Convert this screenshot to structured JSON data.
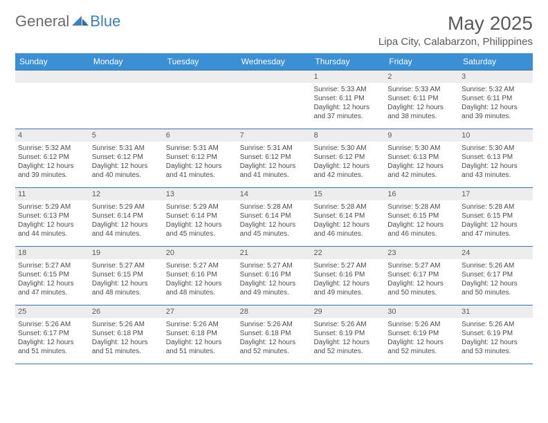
{
  "logo": {
    "text1": "General",
    "text2": "Blue"
  },
  "title": "May 2025",
  "location": "Lipa City, Calabarzon, Philippines",
  "colors": {
    "header_bg": "#3b8fd4",
    "header_text": "#ffffff",
    "border": "#3b6fa8",
    "daynum_bg": "#ededed",
    "text": "#4a4a4a",
    "logo_gray": "#6a6a6a",
    "logo_blue": "#3b7fc4"
  },
  "day_names": [
    "Sunday",
    "Monday",
    "Tuesday",
    "Wednesday",
    "Thursday",
    "Friday",
    "Saturday"
  ],
  "weeks": [
    [
      {
        "day": "",
        "lines": []
      },
      {
        "day": "",
        "lines": []
      },
      {
        "day": "",
        "lines": []
      },
      {
        "day": "",
        "lines": []
      },
      {
        "day": "1",
        "lines": [
          "Sunrise: 5:33 AM",
          "Sunset: 6:11 PM",
          "Daylight: 12 hours and 37 minutes."
        ]
      },
      {
        "day": "2",
        "lines": [
          "Sunrise: 5:33 AM",
          "Sunset: 6:11 PM",
          "Daylight: 12 hours and 38 minutes."
        ]
      },
      {
        "day": "3",
        "lines": [
          "Sunrise: 5:32 AM",
          "Sunset: 6:11 PM",
          "Daylight: 12 hours and 39 minutes."
        ]
      }
    ],
    [
      {
        "day": "4",
        "lines": [
          "Sunrise: 5:32 AM",
          "Sunset: 6:12 PM",
          "Daylight: 12 hours and 39 minutes."
        ]
      },
      {
        "day": "5",
        "lines": [
          "Sunrise: 5:31 AM",
          "Sunset: 6:12 PM",
          "Daylight: 12 hours and 40 minutes."
        ]
      },
      {
        "day": "6",
        "lines": [
          "Sunrise: 5:31 AM",
          "Sunset: 6:12 PM",
          "Daylight: 12 hours and 41 minutes."
        ]
      },
      {
        "day": "7",
        "lines": [
          "Sunrise: 5:31 AM",
          "Sunset: 6:12 PM",
          "Daylight: 12 hours and 41 minutes."
        ]
      },
      {
        "day": "8",
        "lines": [
          "Sunrise: 5:30 AM",
          "Sunset: 6:12 PM",
          "Daylight: 12 hours and 42 minutes."
        ]
      },
      {
        "day": "9",
        "lines": [
          "Sunrise: 5:30 AM",
          "Sunset: 6:13 PM",
          "Daylight: 12 hours and 42 minutes."
        ]
      },
      {
        "day": "10",
        "lines": [
          "Sunrise: 5:30 AM",
          "Sunset: 6:13 PM",
          "Daylight: 12 hours and 43 minutes."
        ]
      }
    ],
    [
      {
        "day": "11",
        "lines": [
          "Sunrise: 5:29 AM",
          "Sunset: 6:13 PM",
          "Daylight: 12 hours and 44 minutes."
        ]
      },
      {
        "day": "12",
        "lines": [
          "Sunrise: 5:29 AM",
          "Sunset: 6:14 PM",
          "Daylight: 12 hours and 44 minutes."
        ]
      },
      {
        "day": "13",
        "lines": [
          "Sunrise: 5:29 AM",
          "Sunset: 6:14 PM",
          "Daylight: 12 hours and 45 minutes."
        ]
      },
      {
        "day": "14",
        "lines": [
          "Sunrise: 5:28 AM",
          "Sunset: 6:14 PM",
          "Daylight: 12 hours and 45 minutes."
        ]
      },
      {
        "day": "15",
        "lines": [
          "Sunrise: 5:28 AM",
          "Sunset: 6:14 PM",
          "Daylight: 12 hours and 46 minutes."
        ]
      },
      {
        "day": "16",
        "lines": [
          "Sunrise: 5:28 AM",
          "Sunset: 6:15 PM",
          "Daylight: 12 hours and 46 minutes."
        ]
      },
      {
        "day": "17",
        "lines": [
          "Sunrise: 5:28 AM",
          "Sunset: 6:15 PM",
          "Daylight: 12 hours and 47 minutes."
        ]
      }
    ],
    [
      {
        "day": "18",
        "lines": [
          "Sunrise: 5:27 AM",
          "Sunset: 6:15 PM",
          "Daylight: 12 hours and 47 minutes."
        ]
      },
      {
        "day": "19",
        "lines": [
          "Sunrise: 5:27 AM",
          "Sunset: 6:15 PM",
          "Daylight: 12 hours and 48 minutes."
        ]
      },
      {
        "day": "20",
        "lines": [
          "Sunrise: 5:27 AM",
          "Sunset: 6:16 PM",
          "Daylight: 12 hours and 48 minutes."
        ]
      },
      {
        "day": "21",
        "lines": [
          "Sunrise: 5:27 AM",
          "Sunset: 6:16 PM",
          "Daylight: 12 hours and 49 minutes."
        ]
      },
      {
        "day": "22",
        "lines": [
          "Sunrise: 5:27 AM",
          "Sunset: 6:16 PM",
          "Daylight: 12 hours and 49 minutes."
        ]
      },
      {
        "day": "23",
        "lines": [
          "Sunrise: 5:27 AM",
          "Sunset: 6:17 PM",
          "Daylight: 12 hours and 50 minutes."
        ]
      },
      {
        "day": "24",
        "lines": [
          "Sunrise: 5:26 AM",
          "Sunset: 6:17 PM",
          "Daylight: 12 hours and 50 minutes."
        ]
      }
    ],
    [
      {
        "day": "25",
        "lines": [
          "Sunrise: 5:26 AM",
          "Sunset: 6:17 PM",
          "Daylight: 12 hours and 51 minutes."
        ]
      },
      {
        "day": "26",
        "lines": [
          "Sunrise: 5:26 AM",
          "Sunset: 6:18 PM",
          "Daylight: 12 hours and 51 minutes."
        ]
      },
      {
        "day": "27",
        "lines": [
          "Sunrise: 5:26 AM",
          "Sunset: 6:18 PM",
          "Daylight: 12 hours and 51 minutes."
        ]
      },
      {
        "day": "28",
        "lines": [
          "Sunrise: 5:26 AM",
          "Sunset: 6:18 PM",
          "Daylight: 12 hours and 52 minutes."
        ]
      },
      {
        "day": "29",
        "lines": [
          "Sunrise: 5:26 AM",
          "Sunset: 6:19 PM",
          "Daylight: 12 hours and 52 minutes."
        ]
      },
      {
        "day": "30",
        "lines": [
          "Sunrise: 5:26 AM",
          "Sunset: 6:19 PM",
          "Daylight: 12 hours and 52 minutes."
        ]
      },
      {
        "day": "31",
        "lines": [
          "Sunrise: 5:26 AM",
          "Sunset: 6:19 PM",
          "Daylight: 12 hours and 53 minutes."
        ]
      }
    ]
  ]
}
